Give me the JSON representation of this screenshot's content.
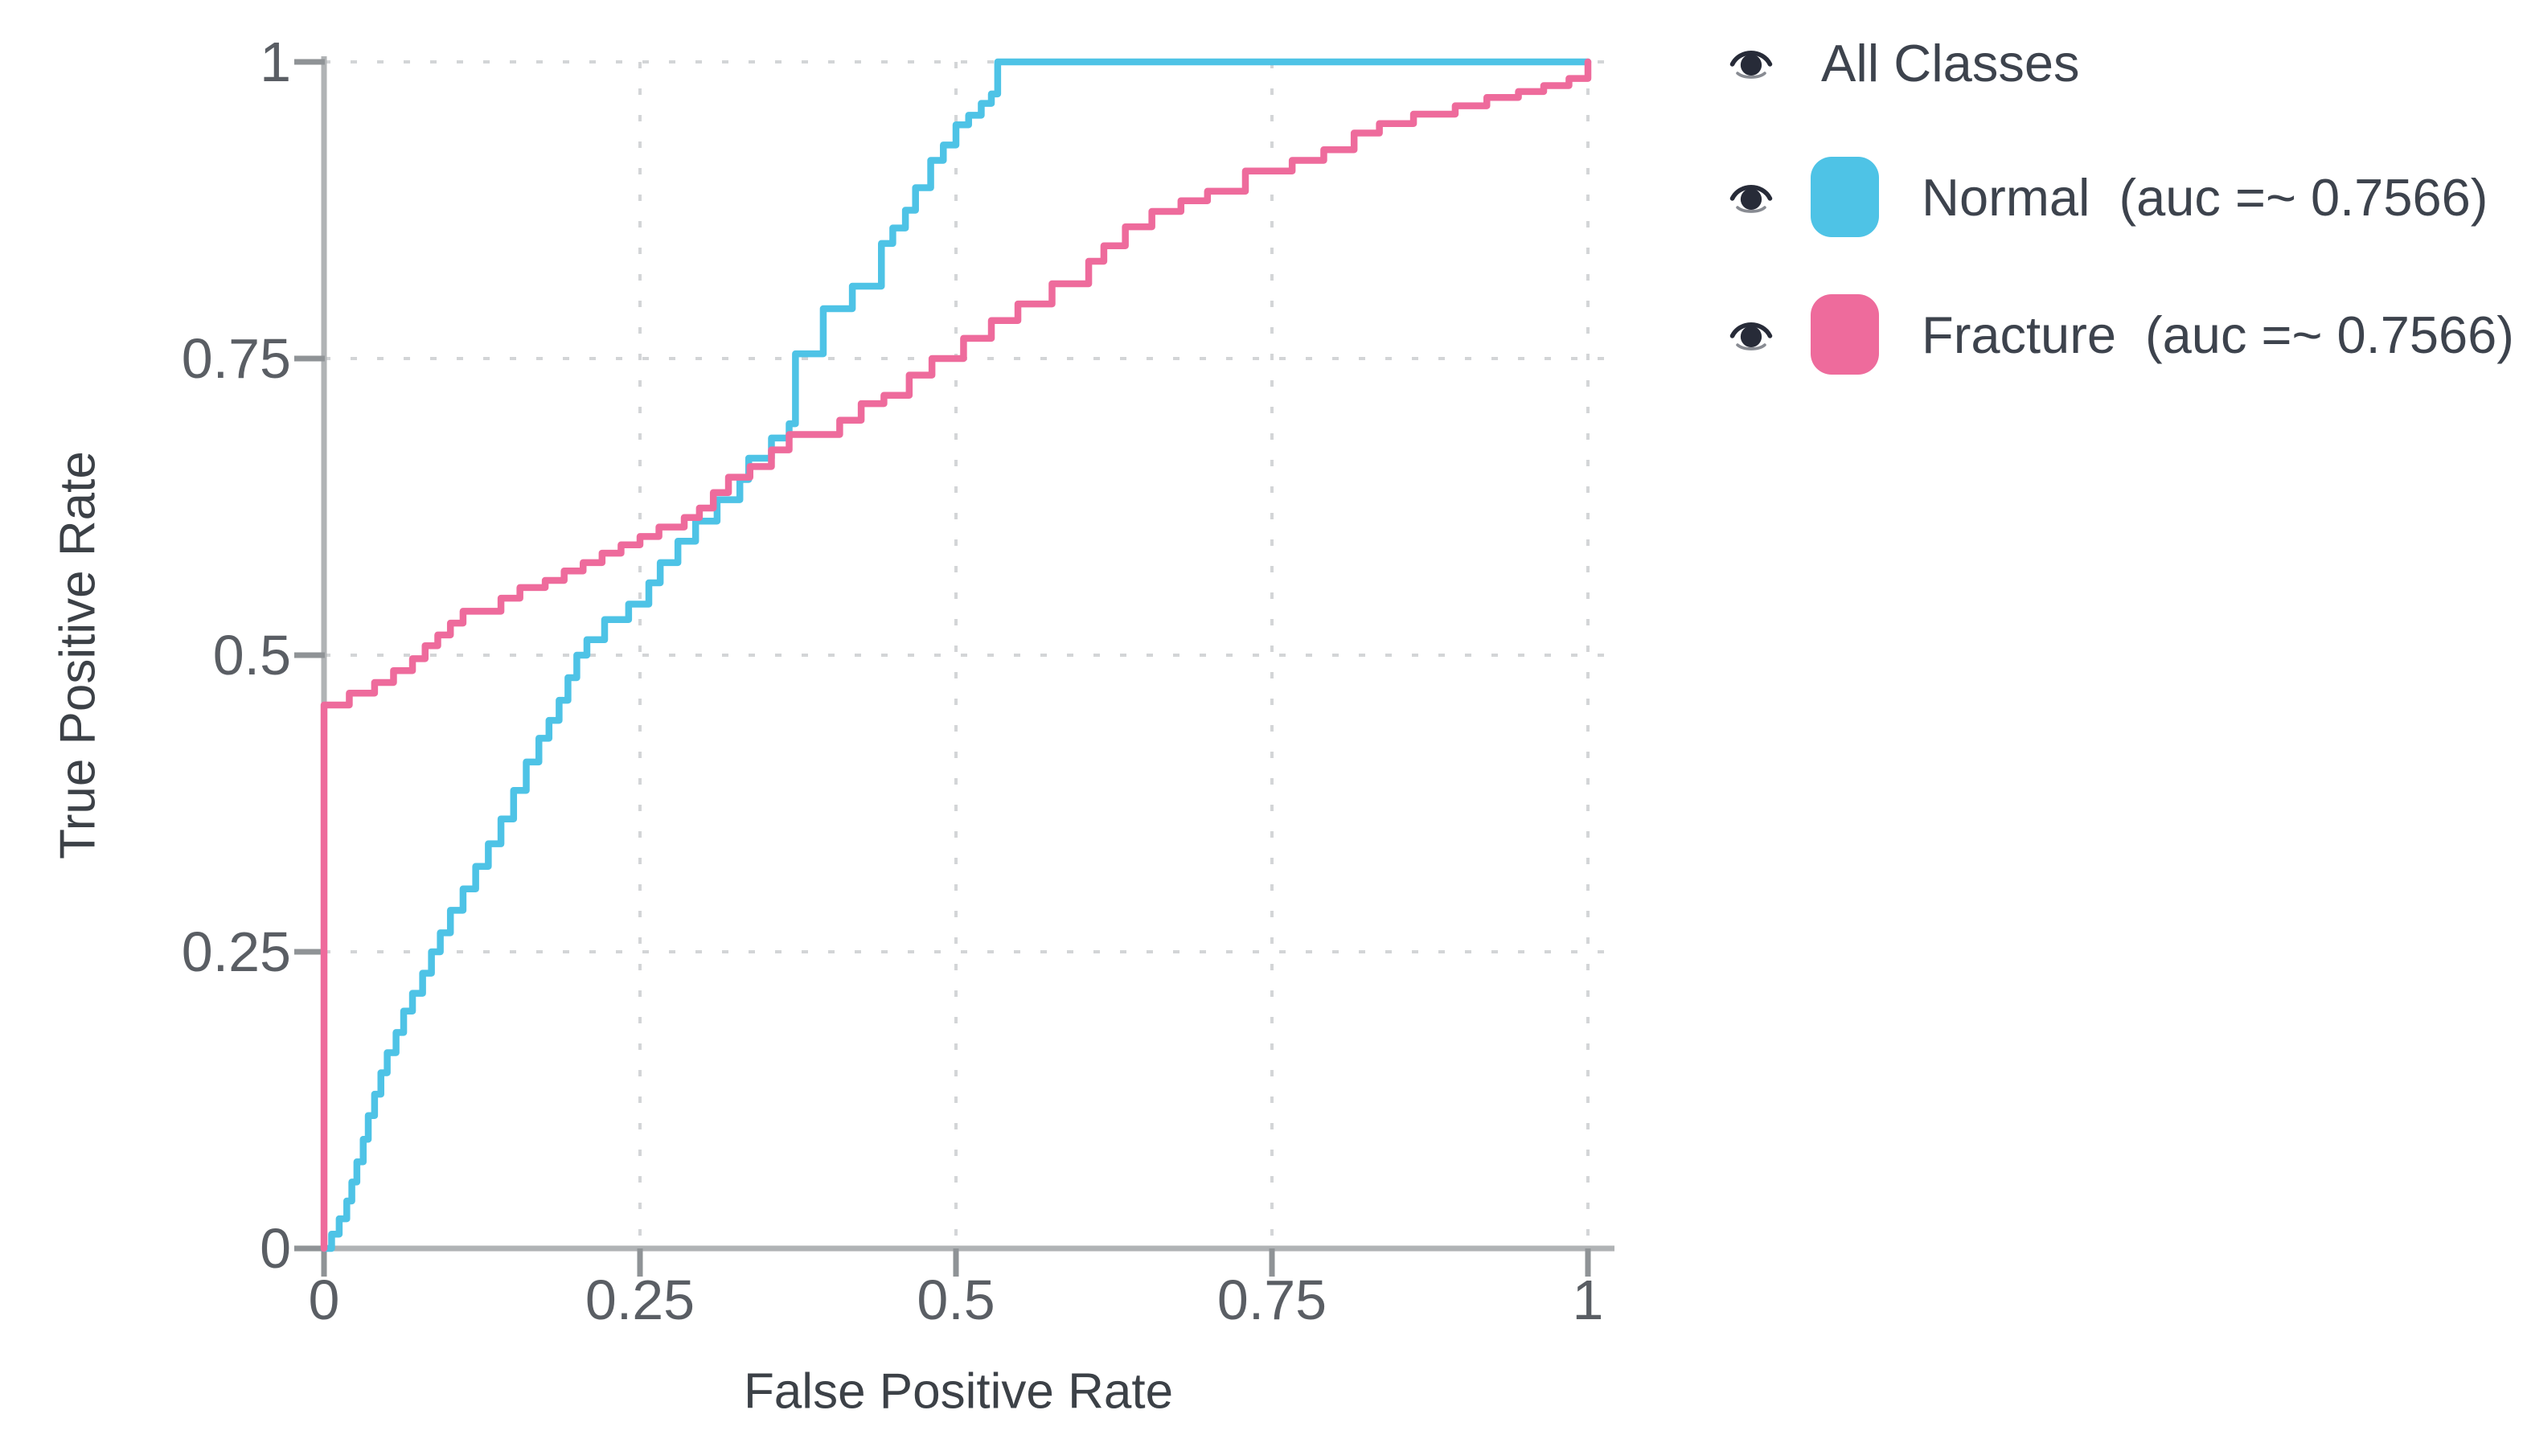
{
  "chart_data": {
    "type": "line",
    "subtype": "roc_step_curves",
    "title": "",
    "xlabel": "False Positive Rate",
    "ylabel": "True Positive Rate",
    "xlim": [
      0,
      1
    ],
    "ylim": [
      0,
      1
    ],
    "grid": "dashed",
    "legend_position": "right",
    "x_tick_values": [
      0,
      0.25,
      0.5,
      0.75,
      1
    ],
    "x_tick_labels": [
      "0",
      "0.25",
      "0.5",
      "0.75",
      "1"
    ],
    "y_tick_values": [
      0,
      0.25,
      0.5,
      0.75,
      1
    ],
    "y_tick_labels": [
      "0",
      "0.25",
      "0.5",
      "0.75",
      "1"
    ],
    "series": [
      {
        "name": "Normal",
        "auc": 0.7566,
        "auc_text": "(auc =~ 0.7566)",
        "color": "#4ec3e6",
        "points": [
          [
            0,
            0
          ],
          [
            0.006,
            0.012
          ],
          [
            0.012,
            0.025
          ],
          [
            0.018,
            0.04
          ],
          [
            0.022,
            0.056
          ],
          [
            0.026,
            0.073
          ],
          [
            0.031,
            0.092
          ],
          [
            0.035,
            0.112
          ],
          [
            0.04,
            0.13
          ],
          [
            0.045,
            0.148
          ],
          [
            0.05,
            0.165
          ],
          [
            0.057,
            0.182
          ],
          [
            0.063,
            0.2
          ],
          [
            0.07,
            0.215
          ],
          [
            0.078,
            0.232
          ],
          [
            0.085,
            0.25
          ],
          [
            0.092,
            0.266
          ],
          [
            0.1,
            0.285
          ],
          [
            0.11,
            0.303
          ],
          [
            0.12,
            0.322
          ],
          [
            0.13,
            0.341
          ],
          [
            0.14,
            0.362
          ],
          [
            0.15,
            0.386
          ],
          [
            0.16,
            0.41
          ],
          [
            0.17,
            0.43
          ],
          [
            0.178,
            0.445
          ],
          [
            0.186,
            0.462
          ],
          [
            0.193,
            0.481
          ],
          [
            0.2,
            0.5
          ],
          [
            0.208,
            0.513
          ],
          [
            0.222,
            0.53
          ],
          [
            0.241,
            0.543
          ],
          [
            0.257,
            0.561
          ],
          [
            0.266,
            0.578
          ],
          [
            0.28,
            0.596
          ],
          [
            0.294,
            0.613
          ],
          [
            0.311,
            0.631
          ],
          [
            0.329,
            0.648
          ],
          [
            0.336,
            0.666
          ],
          [
            0.354,
            0.683
          ],
          [
            0.368,
            0.695
          ],
          [
            0.373,
            0.754
          ],
          [
            0.395,
            0.792
          ],
          [
            0.418,
            0.811
          ],
          [
            0.441,
            0.847
          ],
          [
            0.45,
            0.86
          ],
          [
            0.46,
            0.875
          ],
          [
            0.468,
            0.894
          ],
          [
            0.48,
            0.917
          ],
          [
            0.49,
            0.93
          ],
          [
            0.5,
            0.947
          ],
          [
            0.51,
            0.955
          ],
          [
            0.52,
            0.965
          ],
          [
            0.528,
            0.973
          ],
          [
            0.533,
            1
          ],
          [
            1,
            1
          ]
        ]
      },
      {
        "name": "Fracture",
        "auc": 0.7566,
        "auc_text": "(auc =~ 0.7566)",
        "color": "#ee6b9c",
        "points": [
          [
            0,
            0
          ],
          [
            0,
            0.458
          ],
          [
            0.02,
            0.468
          ],
          [
            0.04,
            0.477
          ],
          [
            0.055,
            0.487
          ],
          [
            0.07,
            0.497
          ],
          [
            0.08,
            0.508
          ],
          [
            0.09,
            0.517
          ],
          [
            0.1,
            0.527
          ],
          [
            0.11,
            0.537
          ],
          [
            0.14,
            0.548
          ],
          [
            0.155,
            0.557
          ],
          [
            0.175,
            0.563
          ],
          [
            0.19,
            0.571
          ],
          [
            0.205,
            0.578
          ],
          [
            0.22,
            0.586
          ],
          [
            0.235,
            0.593
          ],
          [
            0.25,
            0.6
          ],
          [
            0.265,
            0.608
          ],
          [
            0.285,
            0.616
          ],
          [
            0.297,
            0.624
          ],
          [
            0.308,
            0.637
          ],
          [
            0.32,
            0.65
          ],
          [
            0.337,
            0.659
          ],
          [
            0.354,
            0.673
          ],
          [
            0.368,
            0.686
          ],
          [
            0.408,
            0.698
          ],
          [
            0.425,
            0.712
          ],
          [
            0.443,
            0.719
          ],
          [
            0.463,
            0.736
          ],
          [
            0.481,
            0.75
          ],
          [
            0.506,
            0.767
          ],
          [
            0.528,
            0.782
          ],
          [
            0.549,
            0.796
          ],
          [
            0.576,
            0.813
          ],
          [
            0.605,
            0.832
          ],
          [
            0.617,
            0.845
          ],
          [
            0.634,
            0.861
          ],
          [
            0.655,
            0.874
          ],
          [
            0.678,
            0.883
          ],
          [
            0.699,
            0.891
          ],
          [
            0.729,
            0.908
          ],
          [
            0.766,
            0.917
          ],
          [
            0.791,
            0.926
          ],
          [
            0.815,
            0.94
          ],
          [
            0.835,
            0.948
          ],
          [
            0.862,
            0.956
          ],
          [
            0.895,
            0.963
          ],
          [
            0.92,
            0.97
          ],
          [
            0.945,
            0.975
          ],
          [
            0.965,
            0.98
          ],
          [
            0.985,
            0.986
          ],
          [
            1,
            1
          ]
        ]
      }
    ]
  },
  "legend": {
    "items": [
      {
        "label": "All Classes",
        "type": "toggle-all"
      },
      {
        "label": "Normal",
        "auc_text": "(auc =~ 0.7566)",
        "swatch_color": "#4ec3e6"
      },
      {
        "label": "Fracture",
        "auc_text": "(auc =~ 0.7566)",
        "swatch_color": "#ee6b9c"
      }
    ]
  },
  "colors": {
    "background": "#ffffff",
    "axis_line": "#b0b3b5",
    "tick_mark": "#8f9396",
    "gridline": "#d3d5d7",
    "axis_title_text": "#3c4147",
    "tick_label_text": "#5a5e64",
    "legend_text": "#3d434d",
    "eye_icon": "#272b38"
  }
}
